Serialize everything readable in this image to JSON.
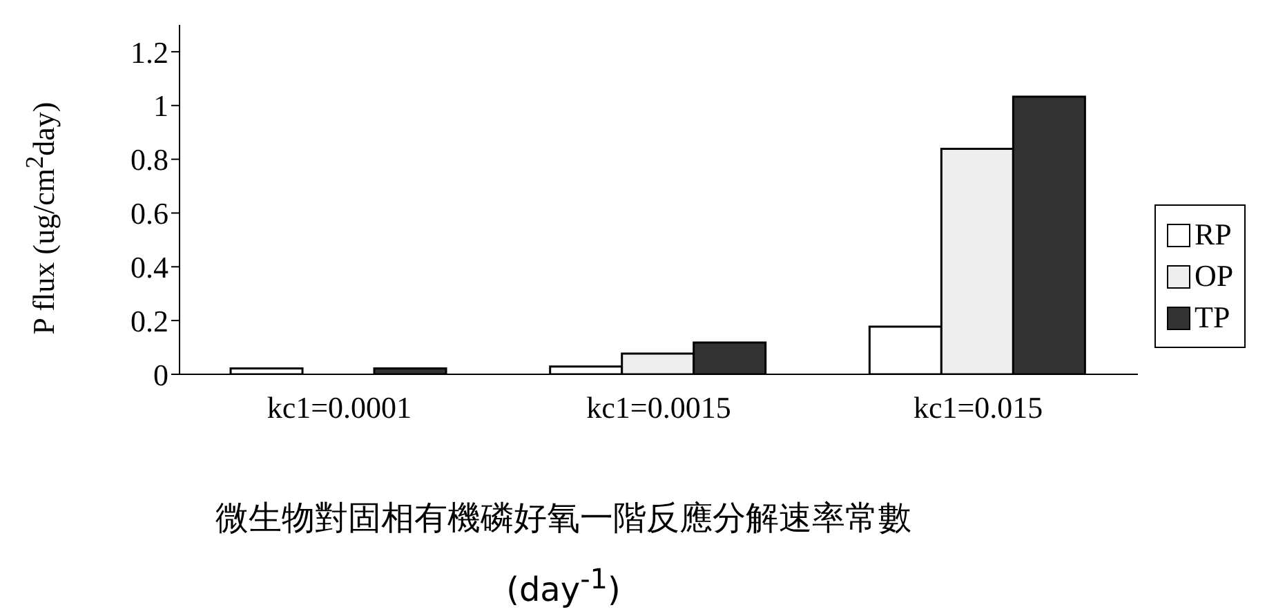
{
  "chart_data": {
    "type": "bar",
    "categories": [
      "kc1=0.0001",
      "kc1=0.0015",
      "kc1=0.015"
    ],
    "series": [
      {
        "name": "RP",
        "color": "#ffffff",
        "values": [
          0.022,
          0.029,
          0.177
        ]
      },
      {
        "name": "OP",
        "color": "#eeeeee",
        "values": [
          0,
          0.077,
          0.839
        ]
      },
      {
        "name": "TP",
        "color": "#333333",
        "values": [
          0.022,
          0.118,
          1.033
        ]
      }
    ],
    "ylim": [
      0,
      1.3
    ],
    "yticks": [
      0,
      0.2,
      0.4,
      0.6,
      0.8,
      1,
      1.2
    ],
    "ylabel": "P flux (ug/cm$^{2}$day)",
    "xlabel": "微生物對固相有機磷好氧一階反應分解速率常數(day$^{-1}$)",
    "grid": false,
    "legend": "right"
  }
}
